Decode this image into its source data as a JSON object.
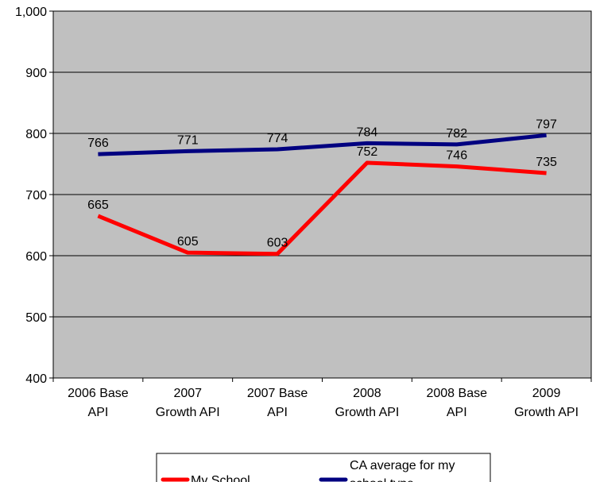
{
  "chart_data": {
    "type": "line",
    "categories": [
      [
        "2006 Base",
        "API"
      ],
      [
        "2007",
        "Growth API"
      ],
      [
        "2007 Base",
        "API"
      ],
      [
        "2008",
        "Growth API"
      ],
      [
        "2008 Base",
        "API"
      ],
      [
        "2009",
        "Growth API"
      ]
    ],
    "series": [
      {
        "name": "My School",
        "color": "#ff0000",
        "values": [
          665,
          605,
          603,
          752,
          746,
          735
        ]
      },
      {
        "name": [
          "CA average for my",
          "school type"
        ],
        "color": "#000080",
        "values": [
          766,
          771,
          774,
          784,
          782,
          797
        ]
      }
    ],
    "yticks": [
      "400",
      "500",
      "600",
      "700",
      "800",
      "900",
      "1,000"
    ],
    "ylim": [
      400,
      1000
    ],
    "grid": true,
    "plot_background": "#c0c0c0",
    "legend_position": "bottom"
  }
}
